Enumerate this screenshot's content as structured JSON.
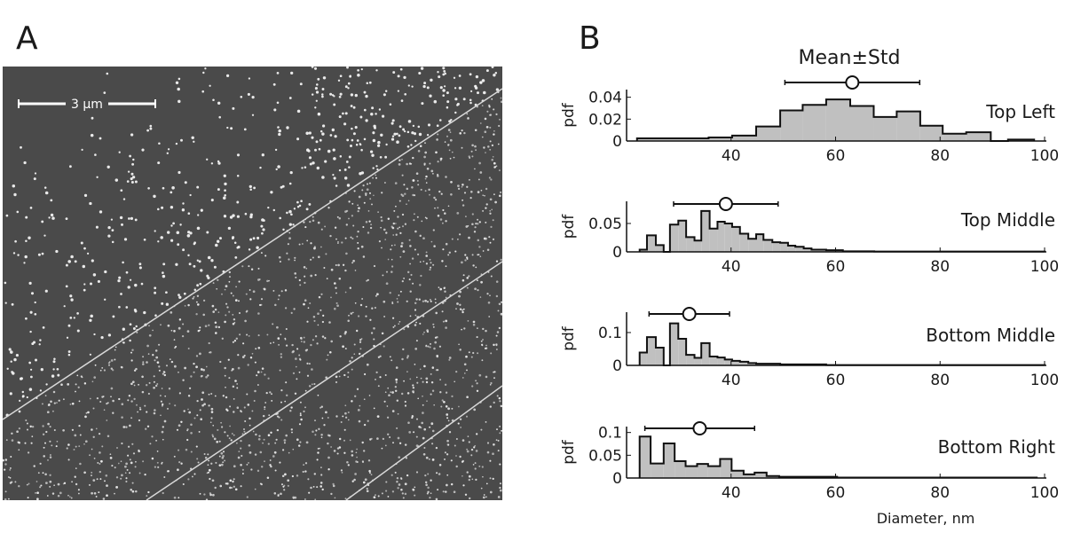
{
  "panel_a": {
    "label": "A",
    "scale_bar": "3 µm",
    "colors": {
      "background": "#4a4a4a",
      "particles": "#f2f2f2",
      "lines": "#d8d8d8"
    }
  },
  "panel_b": {
    "label": "B",
    "legend": "Mean±Std",
    "xlabel": "Diameter, nm",
    "ylabel": "pdf",
    "colors": {
      "fill": "#c0c0c0",
      "stroke": "#111111"
    }
  },
  "chart_data": [
    {
      "type": "bar",
      "title": "Top Left",
      "xlabel": "Diameter, nm",
      "ylabel": "pdf",
      "xlim": [
        20,
        100
      ],
      "ylim": [
        0,
        0.047
      ],
      "xticks": [
        "40",
        "60",
        "80",
        "100"
      ],
      "xtick_values": [
        40,
        60,
        80,
        100
      ],
      "yticks": [
        "0",
        "0.02",
        "0.04"
      ],
      "ytick_values": [
        0,
        0.02,
        0.04
      ],
      "bin_edges": [
        22,
        35.7,
        40.2,
        44.8,
        49.4,
        53.7,
        58.2,
        62.8,
        67.3,
        71.7,
        76.2,
        80.5,
        85,
        89.7,
        93,
        98
      ],
      "values": [
        0.0024,
        0.0032,
        0.005,
        0.0133,
        0.028,
        0.033,
        0.038,
        0.032,
        0.022,
        0.027,
        0.014,
        0.0067,
        0.008,
        0,
        0.0013
      ],
      "mean": 63.2,
      "std": 12.9
    },
    {
      "type": "bar",
      "title": "Top Middle",
      "xlabel": "Diameter, nm",
      "ylabel": "pdf",
      "xlim": [
        20,
        100
      ],
      "ylim": [
        0,
        0.089
      ],
      "xticks": [
        "40",
        "60",
        "80",
        "100"
      ],
      "xtick_values": [
        40,
        60,
        80,
        100
      ],
      "yticks": [
        "0",
        "0.05"
      ],
      "ytick_values": [
        0,
        0.05
      ],
      "bin_edges": [
        22.5,
        23.9,
        25.6,
        27.1,
        28.3,
        29.9,
        31.4,
        33,
        34.3,
        35.9,
        37.4,
        38.8,
        40.2,
        41.7,
        43.3,
        44.8,
        46.2,
        47.9,
        49.4,
        50.9,
        52.3,
        53.9,
        55.4,
        58.2,
        61.4,
        67.4,
        100
      ],
      "values": [
        0.004,
        0.029,
        0.012,
        0,
        0.048,
        0.055,
        0.026,
        0.02,
        0.072,
        0.041,
        0.053,
        0.05,
        0.044,
        0.032,
        0.023,
        0.031,
        0.021,
        0.017,
        0.016,
        0.011,
        0.009,
        0.006,
        0.004,
        0.003,
        0.001,
        0.0005
      ],
      "mean": 39,
      "std": 10
    },
    {
      "type": "bar",
      "title": "Bottom Middle",
      "xlabel": "Diameter, nm",
      "ylabel": "pdf",
      "xlim": [
        20,
        100
      ],
      "ylim": [
        0,
        0.162
      ],
      "xticks": [
        "40",
        "60",
        "80",
        "100"
      ],
      "xtick_values": [
        40,
        60,
        80,
        100
      ],
      "yticks": [
        "0",
        "0.1"
      ],
      "ytick_values": [
        0,
        0.1
      ],
      "bin_edges": [
        22.5,
        23.9,
        25.6,
        27.1,
        28.3,
        29.9,
        31.4,
        33,
        34.3,
        35.9,
        37.4,
        38.8,
        40.2,
        41.7,
        43.3,
        44.8,
        49.4,
        58.2,
        100
      ],
      "values": [
        0.039,
        0.086,
        0.054,
        0,
        0.128,
        0.081,
        0.032,
        0.023,
        0.068,
        0.027,
        0.024,
        0.018,
        0.014,
        0.011,
        0.007,
        0.005,
        0.003,
        0.001
      ],
      "mean": 32,
      "std": 7.7
    },
    {
      "type": "bar",
      "title": "Bottom Right",
      "xlabel": "Diameter, nm",
      "ylabel": "pdf",
      "xlim": [
        20,
        100
      ],
      "ylim": [
        0,
        0.113
      ],
      "xticks": [
        "40",
        "60",
        "80",
        "100"
      ],
      "xtick_values": [
        40,
        60,
        80,
        100
      ],
      "yticks": [
        "0",
        "0.05",
        "0.1"
      ],
      "ytick_values": [
        0,
        0.05,
        0.1
      ],
      "bin_edges": [
        22.5,
        24.6,
        27.1,
        29.2,
        31.3,
        33.5,
        35.6,
        37.9,
        40.1,
        42.4,
        44.5,
        46.8,
        49.2,
        60.3,
        98.5
      ],
      "values": [
        0.091,
        0.032,
        0.076,
        0.037,
        0.026,
        0.031,
        0.026,
        0.042,
        0.016,
        0.008,
        0.012,
        0.0045,
        0.0026,
        0.001
      ],
      "mean": 34,
      "std": 10.5
    }
  ]
}
